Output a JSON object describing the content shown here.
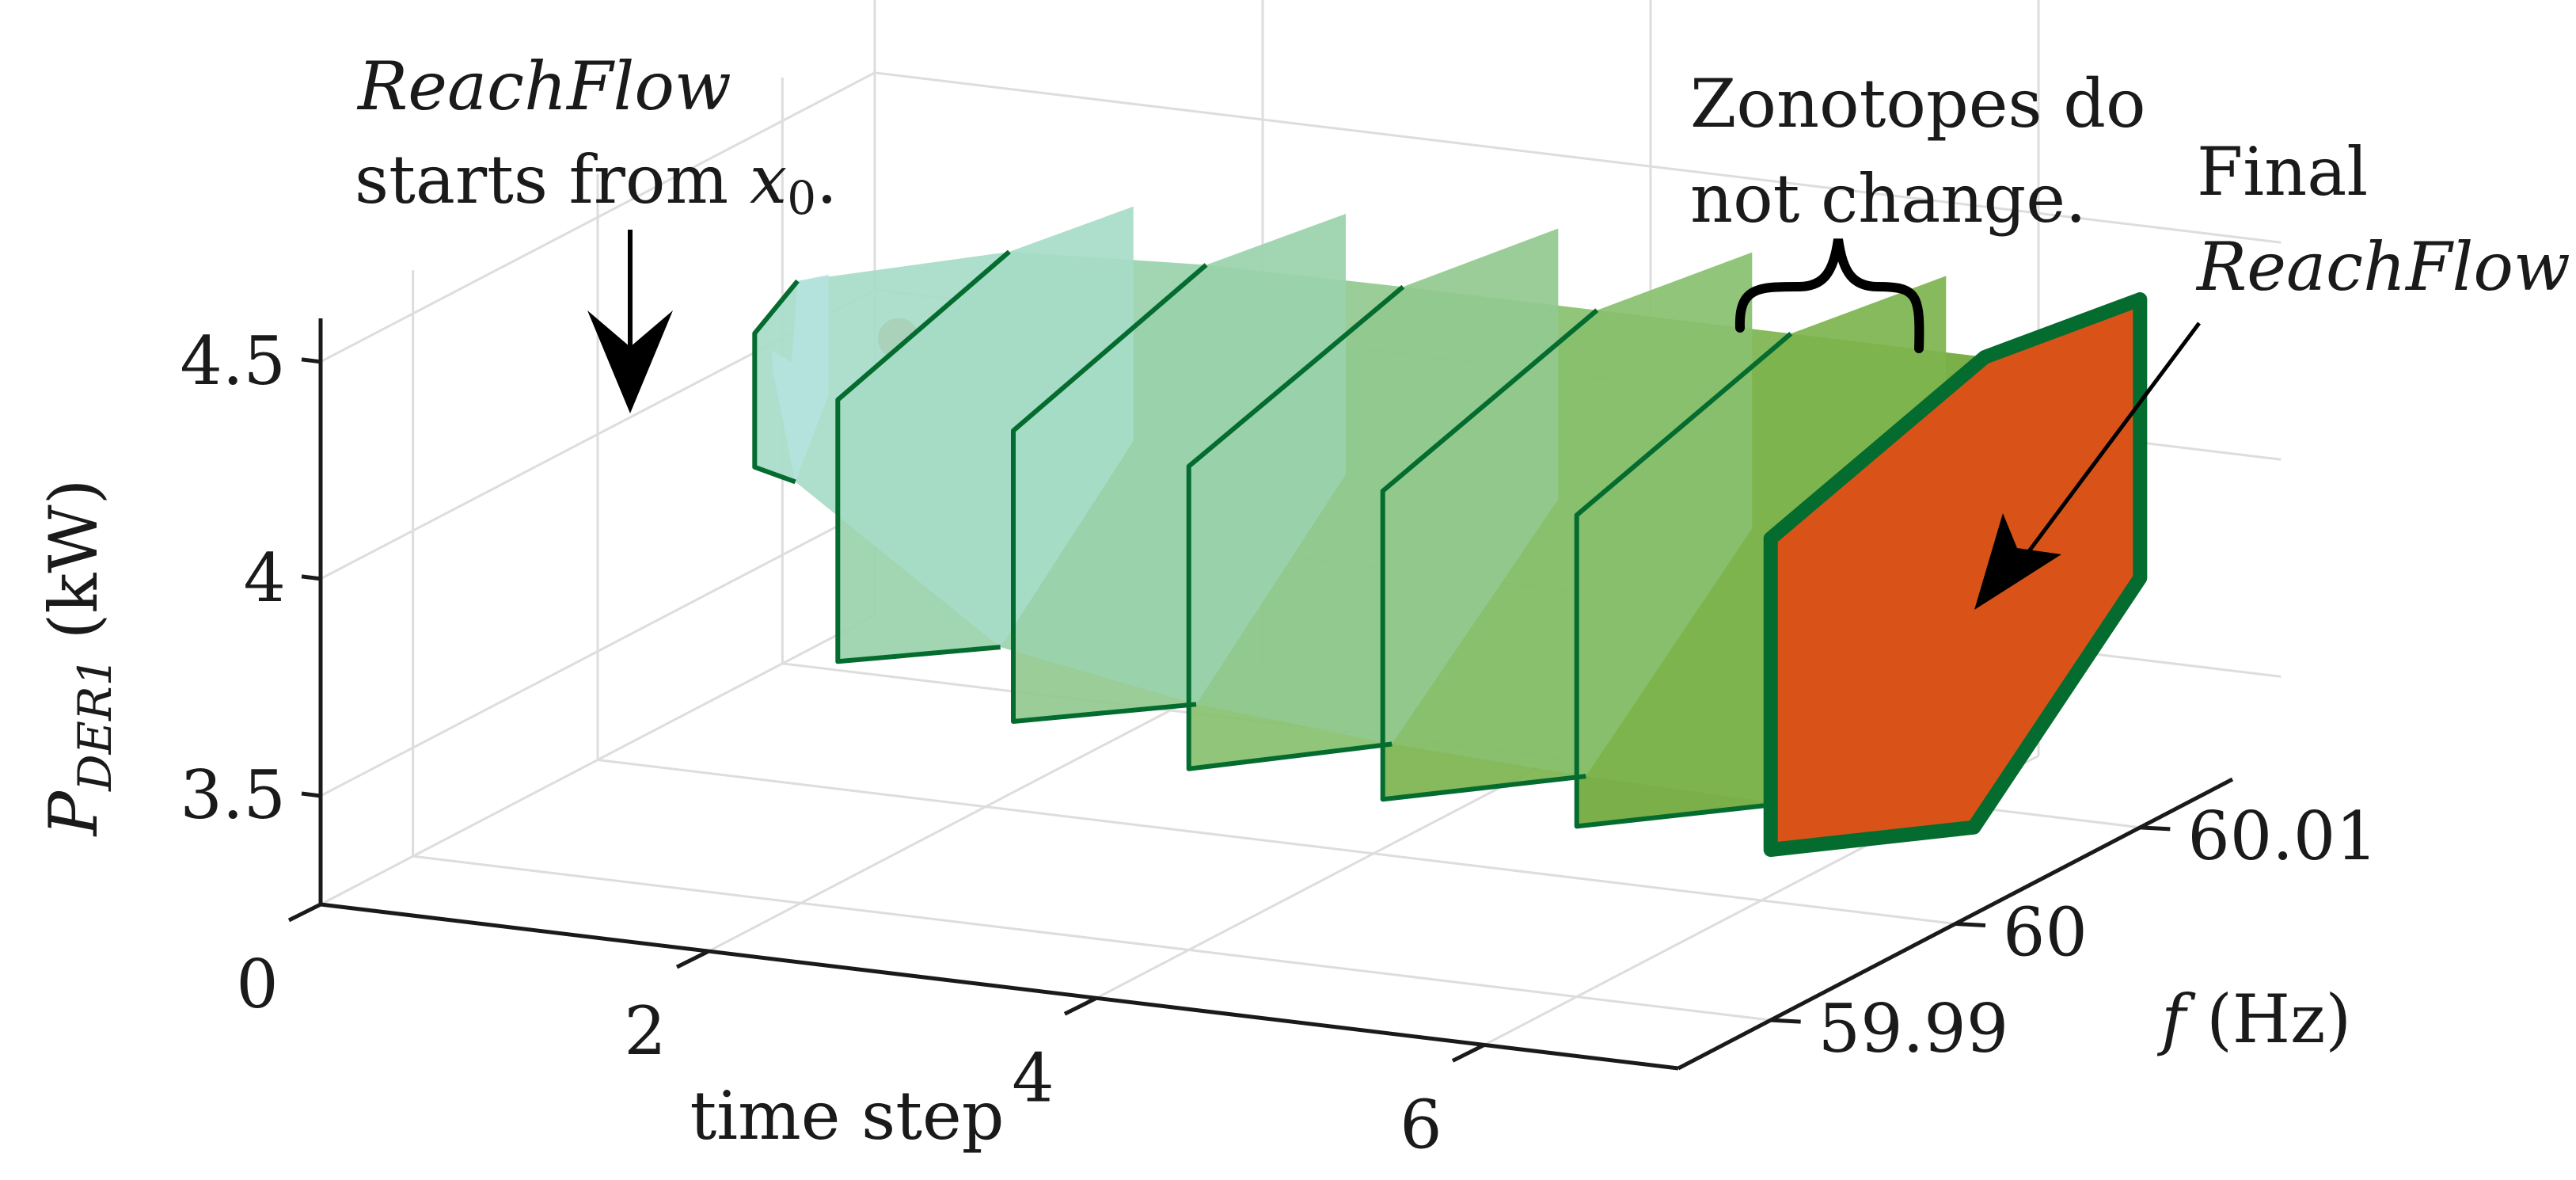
{
  "chart_data": {
    "type": "3d-polygon",
    "title": "",
    "xlabel": "time step",
    "ylabel": {
      "base": "P",
      "subscript": "DER1",
      "unit": "(kW)"
    },
    "zlabel": {
      "symbol": "f",
      "unit": "(Hz)"
    },
    "x_ticks": [
      "0",
      "2",
      "4",
      "6"
    ],
    "y_ticks": [
      "3.5",
      "4",
      "4.5"
    ],
    "f_ticks": [
      "59.99",
      "60",
      "60.01"
    ],
    "xlim": [
      0,
      7
    ],
    "ylim": [
      3.25,
      4.6
    ],
    "flim": [
      59.985,
      60.015
    ],
    "grid": true,
    "initial_state": {
      "time_step": 0,
      "f": 60,
      "P": 4.22
    },
    "zonotopes": [
      {
        "time_step": 1,
        "f": [
          59.998,
          60.002
        ],
        "P_min": 3.94,
        "P_max": 4.4
      },
      {
        "time_step": 2,
        "f": [
          59.992,
          60.008
        ],
        "P_min": 3.6,
        "P_max": 4.5
      },
      {
        "time_step": 3,
        "f": [
          59.991,
          60.009
        ],
        "P_min": 3.52,
        "P_max": 4.52
      },
      {
        "time_step": 4,
        "f": [
          59.99,
          60.01
        ],
        "P_min": 3.48,
        "P_max": 4.52
      },
      {
        "time_step": 5,
        "f": [
          59.99,
          60.01
        ],
        "P_min": 3.46,
        "P_max": 4.52
      },
      {
        "time_step": 6,
        "f": [
          59.99,
          60.01
        ],
        "P_min": 3.45,
        "P_max": 4.52
      },
      {
        "time_step": 7,
        "f": [
          59.99,
          60.01
        ],
        "P_min": 3.45,
        "P_max": 4.52
      }
    ],
    "final_zonotope": {
      "time_step": 7,
      "f": [
        59.99,
        60.01
      ],
      "P_min": 3.45,
      "P_max": 4.52
    }
  },
  "annotations": {
    "start_line1": "ReachFlow",
    "start_line2": "starts from ",
    "start_x": "x",
    "start_sub": "0",
    "start_period": ".",
    "zono_line1": "Zonotopes do",
    "zono_line2": "not change.",
    "final_line1": "Final",
    "final_line2": "ReachFlow"
  },
  "colors": {
    "zonotope_fills": [
      "#b4e3e0",
      "#a6dcc8",
      "#9ad3ad",
      "#93c98f",
      "#88c06f",
      "#7db44e",
      "#6fa83a"
    ],
    "edge": "#046c2f",
    "final_fill": "#d95319",
    "start_point": "#d95319",
    "grid": "#dddddd",
    "axis": "#1a1a1a"
  }
}
